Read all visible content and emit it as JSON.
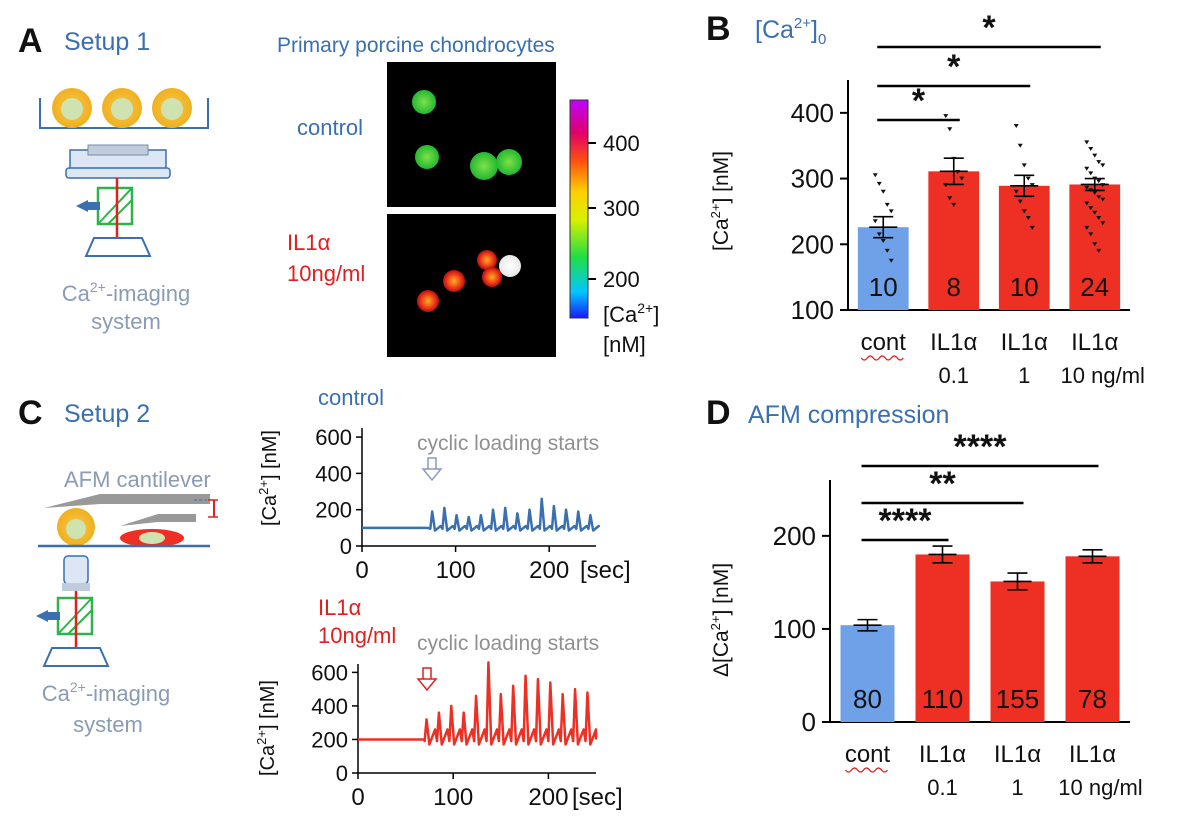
{
  "colors": {
    "blue": "#3a6fb0",
    "blue_bar": "#6ea1e8",
    "red": "#ee3024",
    "grey": "#8a9bb5",
    "green": "#2db34a"
  },
  "panel_a": {
    "letter": "A",
    "title": "Setup 1",
    "system_label_pre": "Ca",
    "system_label_sup": "2+",
    "system_label_post": "-imaging",
    "system_label_line2": "system",
    "micro_title": "Primary porcine chondrocytes",
    "control_label": "control",
    "il1_label": "IL1α",
    "il1_dose": "10ng/ml",
    "colorbar_ticks": [
      "400",
      "300",
      "200"
    ],
    "colorbar_unit_pre": "[Ca",
    "colorbar_unit_sup": "2+",
    "colorbar_unit_post": "]",
    "colorbar_unit_line2": "[nM]"
  },
  "panel_b": {
    "letter": "B",
    "title_pre": "[Ca",
    "title_sup": "2+",
    "title_post": "]",
    "title_sub": "0",
    "ylabel_pre": "[Ca",
    "ylabel_sup": "2+",
    "ylabel_post": "] [nM]",
    "cat_line1": [
      "cont",
      "IL1α",
      "IL1α",
      "IL1α"
    ],
    "cat_line2": [
      "",
      "0.1",
      "1",
      "10 ng/ml"
    ],
    "n_labels": [
      "10",
      "8",
      "10",
      "24"
    ],
    "sig": [
      "*",
      "*",
      "*"
    ]
  },
  "panel_c": {
    "letter": "C",
    "title": "Setup 2",
    "cantilever_label": "AFM cantilever",
    "system_label_pre": "Ca",
    "system_label_sup": "2+",
    "system_label_post": "-imaging",
    "system_label_line2": "system",
    "control_label": "control",
    "il1_label": "IL1α",
    "il1_dose": "10ng/ml",
    "loading_label": "cyclic loading starts",
    "ylabel_pre": "[Ca",
    "ylabel_sup": "2+",
    "ylabel_post": "] [nM]",
    "xunit": "[sec]"
  },
  "panel_d": {
    "letter": "D",
    "title": "AFM compression",
    "ylabel_pre": "Δ[Ca",
    "ylabel_sup": "2+",
    "ylabel_post": "] [nM]",
    "cat_line1": [
      "cont",
      "IL1α",
      "IL1α",
      "IL1α"
    ],
    "cat_line2": [
      "",
      "0.1",
      "1",
      "10 ng/ml"
    ],
    "n_labels": [
      "80",
      "110",
      "155",
      "78"
    ],
    "sig": [
      "****",
      "**",
      "****"
    ]
  },
  "chart_data": [
    {
      "id": "B",
      "type": "bar",
      "title": "[Ca2+]0",
      "ylabel": "[Ca2+] [nM]",
      "categories": [
        "cont",
        "IL1α 0.1",
        "IL1α 1",
        "IL1α 10 ng/ml"
      ],
      "values": [
        226,
        311,
        289,
        291
      ],
      "errors": [
        16,
        20,
        16,
        9
      ],
      "n": [
        10,
        8,
        10,
        24
      ],
      "ylim": [
        100,
        450
      ],
      "yticks": [
        100,
        200,
        300,
        400
      ],
      "points": [
        [
          305,
          292,
          280,
          260,
          250,
          235,
          215,
          205,
          190,
          175
        ],
        [
          395,
          375,
          330,
          310,
          300,
          290,
          270,
          260
        ],
        [
          380,
          350,
          320,
          300,
          290,
          280,
          265,
          250,
          240,
          225
        ],
        [
          355,
          345,
          335,
          325,
          320,
          315,
          308,
          300,
          296,
          290,
          286,
          282,
          278,
          272,
          268,
          262,
          255,
          248,
          240,
          232,
          225,
          215,
          200,
          190
        ]
      ],
      "significance": [
        {
          "from": "cont",
          "to": "IL1α 0.1",
          "label": "*"
        },
        {
          "from": "cont",
          "to": "IL1α 1",
          "label": "*"
        },
        {
          "from": "cont",
          "to": "IL1α 10 ng/ml",
          "label": "*"
        }
      ]
    },
    {
      "id": "C-control",
      "type": "line",
      "ylabel": "[Ca2+] [nM]",
      "xlabel": "[sec]",
      "xlim": [
        0,
        250
      ],
      "ylim": [
        0,
        650
      ],
      "xticks": [
        0,
        100,
        200
      ],
      "yticks": [
        0,
        200,
        400,
        600
      ],
      "baseline": 100,
      "loading_start": 70,
      "peaks": [
        {
          "t": 75,
          "v": 190
        },
        {
          "t": 88,
          "v": 210
        },
        {
          "t": 101,
          "v": 170
        },
        {
          "t": 114,
          "v": 160
        },
        {
          "t": 127,
          "v": 170
        },
        {
          "t": 140,
          "v": 200
        },
        {
          "t": 153,
          "v": 210
        },
        {
          "t": 166,
          "v": 180
        },
        {
          "t": 179,
          "v": 200
        },
        {
          "t": 192,
          "v": 260
        },
        {
          "t": 205,
          "v": 220
        },
        {
          "t": 218,
          "v": 200
        },
        {
          "t": 231,
          "v": 190
        },
        {
          "t": 244,
          "v": 170
        }
      ]
    },
    {
      "id": "C-IL1",
      "type": "line",
      "ylabel": "[Ca2+] [nM]",
      "xlabel": "[sec]",
      "xlim": [
        0,
        250
      ],
      "ylim": [
        0,
        650
      ],
      "xticks": [
        0,
        100,
        200
      ],
      "yticks": [
        0,
        200,
        400,
        600
      ],
      "baseline": 200,
      "loading_start": 70,
      "peaks": [
        {
          "t": 72,
          "v": 320
        },
        {
          "t": 85,
          "v": 360
        },
        {
          "t": 98,
          "v": 400
        },
        {
          "t": 111,
          "v": 360
        },
        {
          "t": 124,
          "v": 460
        },
        {
          "t": 137,
          "v": 660
        },
        {
          "t": 150,
          "v": 470
        },
        {
          "t": 163,
          "v": 520
        },
        {
          "t": 176,
          "v": 580
        },
        {
          "t": 189,
          "v": 560
        },
        {
          "t": 202,
          "v": 540
        },
        {
          "t": 215,
          "v": 470
        },
        {
          "t": 228,
          "v": 500
        },
        {
          "t": 241,
          "v": 480
        }
      ]
    },
    {
      "id": "D",
      "type": "bar",
      "ylabel": "Δ[Ca2+] [nM]",
      "categories": [
        "cont",
        "IL1α 0.1",
        "IL1α 1",
        "IL1α 10 ng/ml"
      ],
      "values": [
        104,
        180,
        151,
        178
      ],
      "errors": [
        6,
        9,
        9,
        7
      ],
      "n": [
        80,
        110,
        155,
        78
      ],
      "ylim": [
        0,
        260
      ],
      "yticks": [
        0,
        100,
        200
      ],
      "significance": [
        {
          "from": "cont",
          "to": "IL1α 0.1",
          "label": "****"
        },
        {
          "from": "cont",
          "to": "IL1α 1",
          "label": "**"
        },
        {
          "from": "cont",
          "to": "IL1α 10 ng/ml",
          "label": "****"
        }
      ]
    }
  ]
}
